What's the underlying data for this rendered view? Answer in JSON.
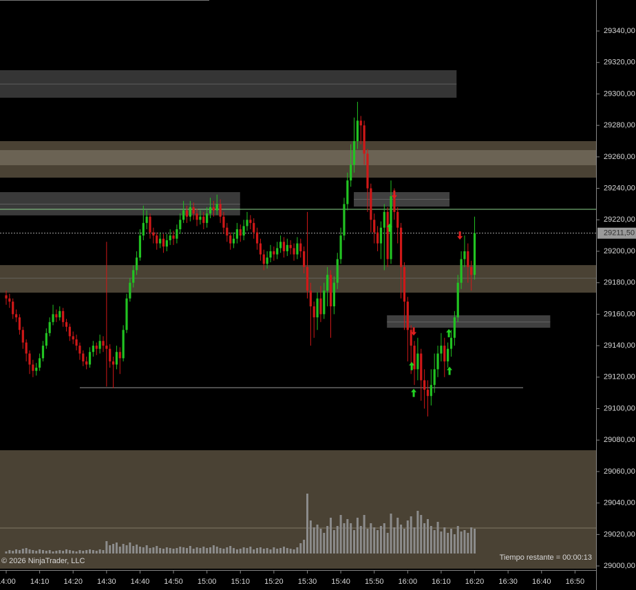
{
  "chart_data": {
    "type": "candlestick",
    "xlim": [
      -1.85,
      176.3
    ],
    "ylim": [
      28997.4,
      29359.7
    ],
    "xticks": [
      {
        "value": 0,
        "label": "14:00"
      },
      {
        "value": 10,
        "label": "14:10"
      },
      {
        "value": 20,
        "label": "14:20"
      },
      {
        "value": 30,
        "label": "14:30"
      },
      {
        "value": 40,
        "label": "14:40"
      },
      {
        "value": 50,
        "label": "14:50"
      },
      {
        "value": 60,
        "label": "15:00"
      },
      {
        "value": 70,
        "label": "15:10"
      },
      {
        "value": 80,
        "label": "15:20"
      },
      {
        "value": 90,
        "label": "15:30"
      },
      {
        "value": 100,
        "label": "15:40"
      },
      {
        "value": 110,
        "label": "15:50"
      },
      {
        "value": 120,
        "label": "16:00"
      },
      {
        "value": 130,
        "label": "16:10"
      },
      {
        "value": 140,
        "label": "16:20"
      },
      {
        "value": 150,
        "label": "16:30"
      },
      {
        "value": 160,
        "label": "16:40"
      },
      {
        "value": 170,
        "label": "16:50"
      }
    ],
    "yticks": [
      {
        "value": 29000,
        "label": "29000,00"
      },
      {
        "value": 29020,
        "label": "29020,00"
      },
      {
        "value": 29040,
        "label": "29040,00"
      },
      {
        "value": 29060,
        "label": "29060,00"
      },
      {
        "value": 29080,
        "label": "29080,00"
      },
      {
        "value": 29100,
        "label": "29100,00"
      },
      {
        "value": 29120,
        "label": "29120,00"
      },
      {
        "value": 29140,
        "label": "29140,00"
      },
      {
        "value": 29160,
        "label": "29160,00"
      },
      {
        "value": 29180,
        "label": "29180,00"
      },
      {
        "value": 29200,
        "label": "29200,00"
      },
      {
        "value": 29220,
        "label": "29220,00"
      },
      {
        "value": 29240,
        "label": "29240,00"
      },
      {
        "value": 29260,
        "label": "29260,00"
      },
      {
        "value": 29280,
        "label": "29280,00"
      },
      {
        "value": 29300,
        "label": "29300,00"
      },
      {
        "value": 29320,
        "label": "29320,00"
      },
      {
        "value": 29340,
        "label": "29340,00"
      }
    ],
    "up_color": "#22c322",
    "down_color": "#d01818",
    "x": [
      0,
      1,
      2,
      3,
      4,
      5,
      6,
      7,
      8,
      9,
      10,
      11,
      12,
      13,
      14,
      15,
      16,
      17,
      18,
      19,
      20,
      21,
      22,
      23,
      24,
      25,
      26,
      27,
      28,
      29,
      30,
      31,
      32,
      33,
      34,
      35,
      36,
      37,
      38,
      39,
      40,
      41,
      42,
      43,
      44,
      45,
      46,
      47,
      48,
      49,
      50,
      51,
      52,
      53,
      54,
      55,
      56,
      57,
      58,
      59,
      60,
      61,
      62,
      63,
      64,
      65,
      66,
      67,
      68,
      69,
      70,
      71,
      72,
      73,
      74,
      75,
      76,
      77,
      78,
      79,
      80,
      81,
      82,
      83,
      84,
      85,
      86,
      87,
      88,
      89,
      90,
      91,
      92,
      93,
      94,
      95,
      96,
      97,
      98,
      99,
      100,
      101,
      102,
      103,
      104,
      105,
      106,
      107,
      108,
      109,
      110,
      111,
      112,
      113,
      114,
      115,
      116,
      117,
      118,
      119,
      120,
      121,
      122,
      123,
      124,
      125,
      126,
      127,
      128,
      129,
      130,
      131,
      132,
      133,
      134,
      135,
      136,
      137,
      138,
      139,
      140
    ],
    "ohlc": [
      [
        29172,
        29175,
        29166,
        29170
      ],
      [
        29170,
        29173,
        29164,
        29168
      ],
      [
        29168,
        29170,
        29157,
        29160
      ],
      [
        29160,
        29163,
        29155,
        29158
      ],
      [
        29158,
        29160,
        29147,
        29150
      ],
      [
        29150,
        29152,
        29138,
        29142
      ],
      [
        29142,
        29144,
        29130,
        29135
      ],
      [
        29135,
        29137,
        29122,
        29128
      ],
      [
        29128,
        29131,
        29120,
        29124
      ],
      [
        29124,
        29129,
        29121,
        29126
      ],
      [
        29126,
        29135,
        29124,
        29132
      ],
      [
        29132,
        29143,
        29130,
        29140
      ],
      [
        29140,
        29151,
        29138,
        29148
      ],
      [
        29148,
        29158,
        29146,
        29155
      ],
      [
        29155,
        29166,
        29153,
        29160
      ],
      [
        29160,
        29163,
        29155,
        29158
      ],
      [
        29158,
        29165,
        29156,
        29162
      ],
      [
        29162,
        29164,
        29152,
        29155
      ],
      [
        29155,
        29157,
        29149,
        29152
      ],
      [
        29152,
        29154,
        29143,
        29146
      ],
      [
        29146,
        29149,
        29141,
        29144
      ],
      [
        29144,
        29147,
        29137,
        29140
      ],
      [
        29140,
        29142,
        29131,
        29135
      ],
      [
        29135,
        29137,
        29127,
        29130
      ],
      [
        29130,
        29133,
        29125,
        29128
      ],
      [
        29128,
        29139,
        29126,
        29136
      ],
      [
        29136,
        29143,
        29133,
        29140
      ],
      [
        29140,
        29142,
        29134,
        29138
      ],
      [
        29138,
        29147,
        29135,
        29143
      ],
      [
        29143,
        29146,
        29136,
        29140
      ],
      [
        29140,
        29206,
        29114,
        29138
      ],
      [
        29138,
        29141,
        29126,
        29130
      ],
      [
        29130,
        29133,
        29113,
        29128
      ],
      [
        29128,
        29140,
        29125,
        29136
      ],
      [
        29136,
        29139,
        29122,
        29132
      ],
      [
        29132,
        29153,
        29130,
        29150
      ],
      [
        29150,
        29173,
        29148,
        29170
      ],
      [
        29170,
        29183,
        29168,
        29180
      ],
      [
        29180,
        29191,
        29177,
        29188
      ],
      [
        29188,
        29200,
        29185,
        29196
      ],
      [
        29196,
        29214,
        29194,
        29210
      ],
      [
        29210,
        29229,
        29207,
        29218
      ],
      [
        29218,
        29226,
        29214,
        29222
      ],
      [
        29222,
        29224,
        29208,
        29212
      ],
      [
        29212,
        29215,
        29205,
        29210
      ],
      [
        29210,
        29212,
        29201,
        29205
      ],
      [
        29205,
        29212,
        29202,
        29208
      ],
      [
        29208,
        29211,
        29199,
        29203
      ],
      [
        29203,
        29211,
        29200,
        29207
      ],
      [
        29207,
        29214,
        29204,
        29210
      ],
      [
        29210,
        29213,
        29204,
        29208
      ],
      [
        29208,
        29217,
        29205,
        29214
      ],
      [
        29214,
        29224,
        29211,
        29220
      ],
      [
        29220,
        29232,
        29218,
        29226
      ],
      [
        29226,
        29229,
        29218,
        29222
      ],
      [
        29222,
        29232,
        29219,
        29228
      ],
      [
        29228,
        29231,
        29220,
        29224
      ],
      [
        29224,
        29227,
        29216,
        29220
      ],
      [
        29220,
        29226,
        29217,
        29222
      ],
      [
        29222,
        29225,
        29214,
        29218
      ],
      [
        29218,
        29228,
        29215,
        29224
      ],
      [
        29224,
        29234,
        29221,
        29228
      ],
      [
        29228,
        29232,
        29222,
        29226
      ],
      [
        29226,
        29236,
        29223,
        29230
      ],
      [
        29230,
        29233,
        29218,
        29222
      ],
      [
        29222,
        29225,
        29211,
        29215
      ],
      [
        29215,
        29218,
        29206,
        29210
      ],
      [
        29210,
        29212,
        29201,
        29205
      ],
      [
        29205,
        29212,
        29202,
        29208
      ],
      [
        29208,
        29218,
        29205,
        29214
      ],
      [
        29214,
        29217,
        29206,
        29210
      ],
      [
        29210,
        29220,
        29207,
        29216
      ],
      [
        29216,
        29225,
        29213,
        29220
      ],
      [
        29220,
        29223,
        29214,
        29218
      ],
      [
        29218,
        29221,
        29208,
        29212
      ],
      [
        29212,
        29215,
        29201,
        29205
      ],
      [
        29205,
        29208,
        29194,
        29198
      ],
      [
        29198,
        29201,
        29188,
        29192
      ],
      [
        29192,
        29200,
        29189,
        29196
      ],
      [
        29196,
        29204,
        29193,
        29200
      ],
      [
        29200,
        29203,
        29194,
        29198
      ],
      [
        29198,
        29206,
        29195,
        29202
      ],
      [
        29202,
        29210,
        29199,
        29206
      ],
      [
        29206,
        29209,
        29196,
        29200
      ],
      [
        29200,
        29208,
        29197,
        29204
      ],
      [
        29204,
        29207,
        29198,
        29202
      ],
      [
        29202,
        29205,
        29194,
        29198
      ],
      [
        29198,
        29209,
        29195,
        29205
      ],
      [
        29205,
        29208,
        29196,
        29200
      ],
      [
        29200,
        29203,
        29186,
        29190
      ],
      [
        29190,
        29225,
        29170,
        29175
      ],
      [
        29175,
        29180,
        29140,
        29165
      ],
      [
        29165,
        29168,
        29145,
        29158
      ],
      [
        29158,
        29174,
        29150,
        29170
      ],
      [
        29170,
        29178,
        29155,
        29160
      ],
      [
        29160,
        29180,
        29157,
        29175
      ],
      [
        29175,
        29190,
        29165,
        29185
      ],
      [
        29185,
        29188,
        29145,
        29165
      ],
      [
        29165,
        29184,
        29160,
        29180
      ],
      [
        29180,
        29199,
        29176,
        29195
      ],
      [
        29195,
        29215,
        29192,
        29210
      ],
      [
        29210,
        29234,
        29207,
        29230
      ],
      [
        29230,
        29250,
        29226,
        29245
      ],
      [
        29245,
        29268,
        29241,
        29255
      ],
      [
        29255,
        29285,
        29250,
        29270
      ],
      [
        29270,
        29295,
        29265,
        29283
      ],
      [
        29283,
        29286,
        29268,
        29280
      ],
      [
        29280,
        29283,
        29255,
        29262
      ],
      [
        29262,
        29265,
        29225,
        29240
      ],
      [
        29240,
        29243,
        29212,
        29220
      ],
      [
        29220,
        29224,
        29205,
        29212
      ],
      [
        29212,
        29216,
        29200,
        29205
      ],
      [
        29205,
        29219,
        29195,
        29215
      ],
      [
        29215,
        29230,
        29188,
        29225
      ],
      [
        29225,
        29228,
        29190,
        29195
      ],
      [
        29195,
        29245,
        29192,
        29235
      ],
      [
        29235,
        29240,
        29220,
        29225
      ],
      [
        29225,
        29228,
        29205,
        29215
      ],
      [
        29215,
        29218,
        29170,
        29190
      ],
      [
        29190,
        29193,
        29150,
        29168
      ],
      [
        29168,
        29171,
        29130,
        29150
      ],
      [
        29150,
        29153,
        29122,
        29140
      ],
      [
        29140,
        29143,
        29115,
        29125
      ],
      [
        29125,
        29145,
        29118,
        29135
      ],
      [
        29135,
        29138,
        29105,
        29118
      ],
      [
        29118,
        29125,
        29100,
        29112
      ],
      [
        29112,
        29118,
        29095,
        29108
      ],
      [
        29108,
        29125,
        29102,
        29115
      ],
      [
        29115,
        29135,
        29110,
        29125
      ],
      [
        29125,
        29140,
        29120,
        29135
      ],
      [
        29135,
        29148,
        29130,
        29140
      ],
      [
        29140,
        29145,
        29120,
        29130
      ],
      [
        29130,
        29142,
        29126,
        29138
      ],
      [
        29138,
        29150,
        29133,
        29145
      ],
      [
        29145,
        29162,
        29140,
        29158
      ],
      [
        29158,
        29185,
        29155,
        29180
      ],
      [
        29180,
        29200,
        29176,
        29195
      ],
      [
        29195,
        29210,
        29190,
        29200
      ],
      [
        29200,
        29205,
        29180,
        29190
      ],
      [
        29190,
        29194,
        29175,
        29185
      ],
      [
        29185,
        29222,
        29182,
        29211.5
      ]
    ],
    "volume": {
      "color": "#8c8c8c",
      "vlim": [
        0,
        100
      ],
      "values": [
        3,
        5,
        4,
        6,
        5,
        7,
        8,
        6,
        5,
        4,
        6,
        5,
        4,
        5,
        3,
        4,
        5,
        4,
        6,
        5,
        4,
        3,
        5,
        4,
        5,
        6,
        5,
        4,
        6,
        5,
        18,
        12,
        14,
        16,
        10,
        14,
        12,
        16,
        11,
        13,
        10,
        9,
        12,
        8,
        9,
        11,
        8,
        7,
        9,
        8,
        7,
        8,
        10,
        9,
        8,
        11,
        7,
        9,
        8,
        10,
        8,
        9,
        12,
        10,
        8,
        7,
        9,
        11,
        8,
        6,
        7,
        9,
        8,
        10,
        6,
        8,
        9,
        7,
        8,
        6,
        9,
        7,
        8,
        10,
        8,
        7,
        6,
        9,
        15,
        20,
        87,
        48,
        38,
        42,
        36,
        30,
        40,
        52,
        34,
        40,
        56,
        44,
        50,
        44,
        34,
        52,
        40,
        56,
        36,
        44,
        38,
        34,
        40,
        44,
        30,
        58,
        38,
        52,
        42,
        36,
        48,
        54,
        38,
        62,
        56,
        44,
        50,
        40,
        34,
        46,
        32,
        38,
        30,
        36,
        28,
        40,
        32,
        34,
        30,
        38,
        36
      ]
    },
    "zones": [
      {
        "from": 29297.6,
        "to": 29315.1,
        "start": -1.85,
        "end": 134.6,
        "mid": 29306.3,
        "color": "#353535"
      },
      {
        "from": 29246.8,
        "to": 29270,
        "start": -1.85,
        "end": 176.3,
        "color": "#4a4234"
      },
      {
        "from": 29254.7,
        "to": 29264.3,
        "start": -1.85,
        "end": 176.3,
        "color": "#6b6354"
      },
      {
        "from": 29222.8,
        "to": 29237.6,
        "start": -1.85,
        "end": 69.9,
        "mid": 29230,
        "color": "#3a3a3a"
      },
      {
        "from": 29173.7,
        "to": 29191.2,
        "start": -1.85,
        "end": 176.3,
        "mid": 29182.9,
        "color": "#4a4234"
      },
      {
        "from": 29228.4,
        "to": 29237.6,
        "start": 103.9,
        "end": 132.5,
        "mid": 29233,
        "color": "#404040"
      },
      {
        "from": 29151.4,
        "to": 29159.3,
        "start": 113.8,
        "end": 162.6,
        "mid": 29155,
        "color": "#404040"
      }
    ],
    "lines": [
      {
        "value": 29226.7,
        "start": -1.85,
        "end": 176.3,
        "color": "#8fd88f"
      },
      {
        "value": 29113.3,
        "start": 22,
        "end": 154.5,
        "color": "#9a9a9a"
      }
    ],
    "signals": [
      {
        "x": 116,
        "price": 29236,
        "dir": "down",
        "color": "#e02020"
      },
      {
        "x": 114.6,
        "price": 29215,
        "dir": "up",
        "color": "#22d322"
      },
      {
        "x": 121.8,
        "price": 29149,
        "dir": "down",
        "color": "#e02020"
      },
      {
        "x": 121.2,
        "price": 29127,
        "dir": "up",
        "color": "#22d322"
      },
      {
        "x": 121.8,
        "price": 29110,
        "dir": "up",
        "color": "#22d322"
      },
      {
        "x": 132.5,
        "price": 29124,
        "dir": "up",
        "color": "#22d322"
      },
      {
        "x": 132.3,
        "price": 29148,
        "dir": "up",
        "color": "#22d322"
      },
      {
        "x": 135.6,
        "price": 29210,
        "dir": "down",
        "color": "#e02020"
      }
    ],
    "last_price": {
      "value": 29211.5,
      "label": "29211,50"
    },
    "copyright": "© 2026 NinjaTrader, LLC",
    "time_remaining": "Tiempo restante = 00:00:13"
  }
}
